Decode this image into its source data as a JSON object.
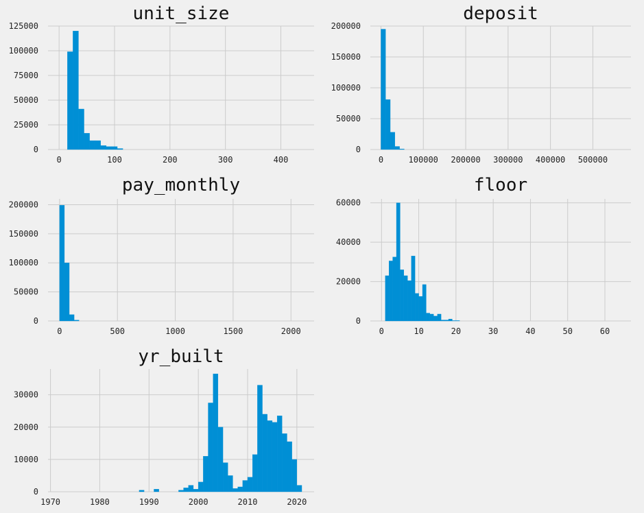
{
  "chart_data": [
    {
      "type": "bar",
      "title": "unit_size",
      "xlim": [
        -20,
        460
      ],
      "ylim": [
        0,
        125000
      ],
      "xticks": [
        0,
        100,
        200,
        300,
        400
      ],
      "yticks": [
        0,
        25000,
        50000,
        75000,
        100000,
        125000
      ],
      "bin_width": 10,
      "bins": [
        [
          15,
          99000
        ],
        [
          25,
          120000
        ],
        [
          35,
          41000
        ],
        [
          45,
          16500
        ],
        [
          55,
          9000
        ],
        [
          65,
          9000
        ],
        [
          75,
          4000
        ],
        [
          85,
          3000
        ],
        [
          95,
          3000
        ],
        [
          105,
          1000
        ]
      ],
      "grid": true
    },
    {
      "type": "bar",
      "title": "deposit",
      "xlim": [
        -25000,
        590000
      ],
      "ylim": [
        0,
        200000
      ],
      "xticks": [
        0,
        100000,
        200000,
        300000,
        400000,
        500000
      ],
      "yticks": [
        0,
        50000,
        100000,
        150000,
        200000
      ],
      "bin_width": 11000,
      "bins": [
        [
          0,
          195000
        ],
        [
          11000,
          81000
        ],
        [
          22000,
          28000
        ],
        [
          33000,
          5000
        ],
        [
          44000,
          1000
        ]
      ],
      "grid": true
    },
    {
      "type": "bar",
      "title": "pay_monthly",
      "xlim": [
        -100,
        2200
      ],
      "ylim": [
        0,
        210000
      ],
      "xticks": [
        0,
        500,
        1000,
        1500,
        2000
      ],
      "yticks": [
        0,
        50000,
        100000,
        150000,
        200000
      ],
      "bin_width": 42,
      "bins": [
        [
          0,
          199000
        ],
        [
          42,
          100000
        ],
        [
          84,
          11000
        ],
        [
          126,
          1500
        ]
      ],
      "grid": true
    },
    {
      "type": "bar",
      "title": "floor",
      "xlim": [
        -3,
        67
      ],
      "ylim": [
        0,
        62000
      ],
      "xticks": [
        0,
        10,
        20,
        30,
        40,
        50,
        60
      ],
      "yticks": [
        0,
        20000,
        40000,
        60000
      ],
      "bin_width": 1,
      "bins": [
        [
          1,
          23000
        ],
        [
          2,
          30500
        ],
        [
          3,
          32500
        ],
        [
          4,
          60000
        ],
        [
          5,
          26000
        ],
        [
          6,
          23000
        ],
        [
          7,
          20500
        ],
        [
          8,
          33000
        ],
        [
          9,
          14000
        ],
        [
          10,
          12500
        ],
        [
          11,
          18500
        ],
        [
          12,
          4000
        ],
        [
          13,
          3500
        ],
        [
          14,
          2500
        ],
        [
          15,
          3500
        ],
        [
          16,
          500
        ],
        [
          17,
          500
        ],
        [
          18,
          1000
        ],
        [
          19,
          200
        ],
        [
          20,
          200
        ]
      ],
      "grid": true
    },
    {
      "type": "bar",
      "title": "yr_built",
      "xlim": [
        1969.5,
        2023.5
      ],
      "ylim": [
        0,
        38000
      ],
      "xticks": [
        1970,
        1980,
        1990,
        2000,
        2010,
        2020
      ],
      "yticks": [
        0,
        10000,
        20000,
        30000
      ],
      "bin_width": 1,
      "bins": [
        [
          1988,
          500
        ],
        [
          1991,
          800
        ],
        [
          1996,
          500
        ],
        [
          1997,
          1200
        ],
        [
          1998,
          2000
        ],
        [
          1999,
          800
        ],
        [
          2000,
          3000
        ],
        [
          2001,
          11000
        ],
        [
          2002,
          27500
        ],
        [
          2003,
          36500
        ],
        [
          2004,
          20000
        ],
        [
          2005,
          9000
        ],
        [
          2006,
          5000
        ],
        [
          2007,
          1000
        ],
        [
          2008,
          1500
        ],
        [
          2009,
          3500
        ],
        [
          2010,
          4500
        ],
        [
          2011,
          11500
        ],
        [
          2012,
          33000
        ],
        [
          2013,
          24000
        ],
        [
          2014,
          22000
        ],
        [
          2015,
          21500
        ],
        [
          2016,
          23500
        ],
        [
          2017,
          18000
        ],
        [
          2018,
          15500
        ],
        [
          2019,
          10000
        ],
        [
          2020,
          2000
        ]
      ],
      "grid": true
    }
  ]
}
